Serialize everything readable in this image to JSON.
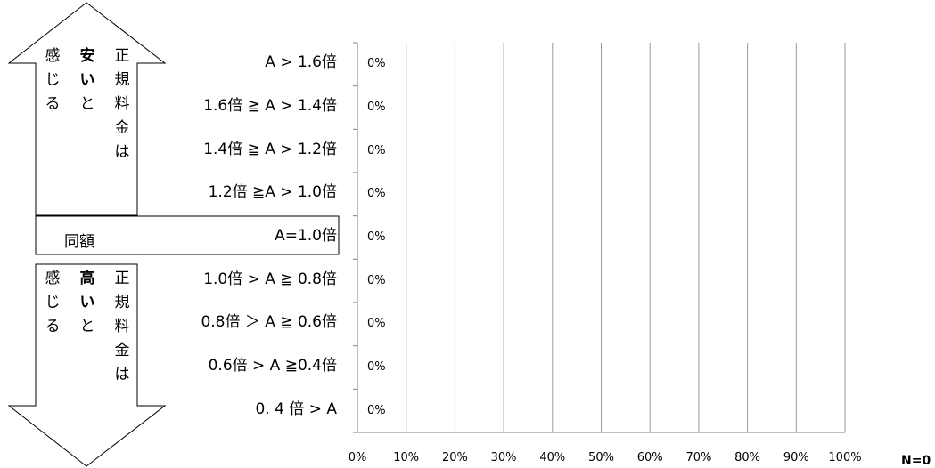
{
  "chart_data": {
    "type": "bar",
    "orientation": "horizontal",
    "categories": [
      "A > 1.6倍",
      "1.6倍 ≧ A > 1.4倍",
      "1.4倍 ≧ A > 1.2倍",
      "1.2倍 ≧A > 1.0倍",
      "A=1.0倍",
      "1.0倍 > A ≧ 0.8倍",
      "0.8倍 ＞ A ≧ 0.6倍",
      "0.6倍 > A ≧0.4倍",
      "0. 4 倍 > A"
    ],
    "values": [
      0,
      0,
      0,
      0,
      0,
      0,
      0,
      0,
      0
    ],
    "value_labels": [
      "0%",
      "0%",
      "0%",
      "0%",
      "0%",
      "0%",
      "0%",
      "0%",
      "0%"
    ],
    "xticks": [
      "0%",
      "10%",
      "20%",
      "30%",
      "40%",
      "50%",
      "60%",
      "70%",
      "80%",
      "90%",
      "100%"
    ],
    "xlim": [
      0,
      100
    ],
    "grid": true,
    "n_label": "N=0"
  },
  "arrows": {
    "up_columns": [
      {
        "chars": [
          "感",
          "じ",
          "る"
        ],
        "bold": false
      },
      {
        "chars": [
          "安",
          "い",
          "と"
        ],
        "bold_first_two": true
      },
      {
        "chars": [
          "正",
          "規",
          "料",
          "金",
          "は"
        ],
        "bold": false
      }
    ],
    "down_columns": [
      {
        "chars": [
          "感",
          "じ",
          "る"
        ],
        "bold": false
      },
      {
        "chars": [
          "高",
          "い",
          "と"
        ],
        "bold_first_two": true
      },
      {
        "chars": [
          "正",
          "規",
          "料",
          "金",
          "は"
        ],
        "bold": false
      }
    ],
    "same_label": "同額"
  },
  "colors": {
    "grid": "#9a9a9a",
    "axis": "#7f7f7f",
    "outline": "#000000"
  }
}
